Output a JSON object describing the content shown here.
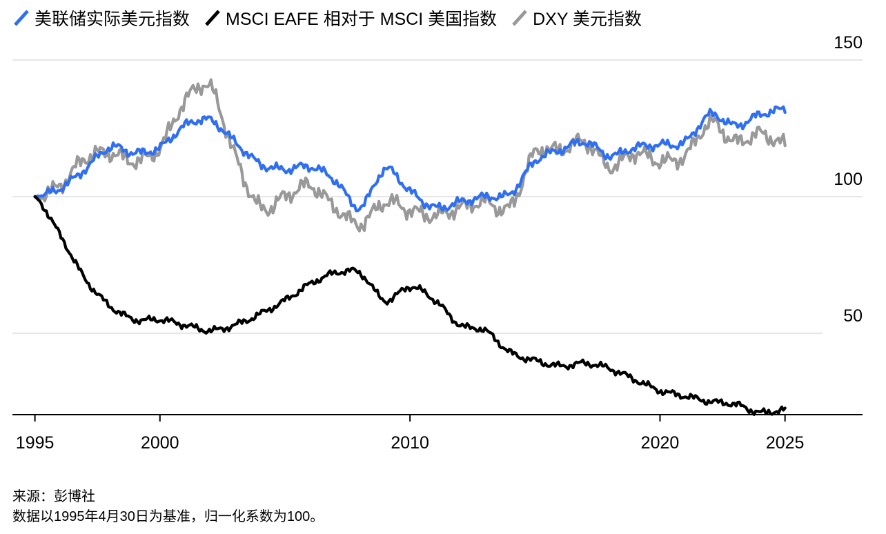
{
  "chart_data": {
    "type": "line",
    "title": "",
    "xlabel": "",
    "ylabel": "",
    "ylim": [
      20,
      150
    ],
    "xlim": [
      1994.1,
      2028.1
    ],
    "grid": true,
    "legend_position": "top-left",
    "x_ticks": [
      "1995",
      "2000",
      "2010",
      "2020",
      "2025"
    ],
    "y_ticks": [
      "150",
      "100",
      "50"
    ],
    "x": [
      1995,
      1996,
      1997,
      1998,
      1999,
      2000,
      2001,
      2002,
      2003,
      2004,
      2005,
      2006,
      2007,
      2008,
      2009,
      2010,
      2011,
      2012,
      2013,
      2014,
      2015,
      2016,
      2017,
      2018,
      2019,
      2020,
      2021,
      2022,
      2023,
      2024,
      2025
    ],
    "series": [
      {
        "name": "美联储实际美元指数",
        "color": "#2f6ff0",
        "values": [
          100,
          103,
          110,
          118,
          116,
          118,
          126,
          128,
          120,
          112,
          110,
          111,
          106,
          96,
          110,
          102,
          96,
          98,
          100,
          101,
          113,
          117,
          120,
          115,
          118,
          119,
          120,
          130,
          126,
          130,
          132
        ]
      },
      {
        "name": "MSCI EAFE 相对于 MSCI 美国指数",
        "color": "#000000",
        "values": [
          100,
          86,
          70,
          60,
          55,
          55,
          53,
          51,
          53,
          57,
          62,
          68,
          72,
          72,
          62,
          67,
          62,
          53,
          51,
          43,
          40,
          38,
          39,
          37,
          33,
          29,
          27,
          25,
          24,
          21,
          22
        ]
      },
      {
        "name": "DXY 美元指数",
        "color": "#999999",
        "values": [
          100,
          104,
          114,
          116,
          113,
          118,
          135,
          140,
          115,
          96,
          100,
          104,
          96,
          90,
          98,
          95,
          93,
          96,
          98,
          96,
          116,
          117,
          120,
          111,
          116,
          113,
          115,
          127,
          120,
          123,
          119
        ]
      }
    ]
  },
  "footer": {
    "source": "来源：彭博社",
    "note": "数据以1995年4月30日为基准，归一化系数为100。"
  }
}
